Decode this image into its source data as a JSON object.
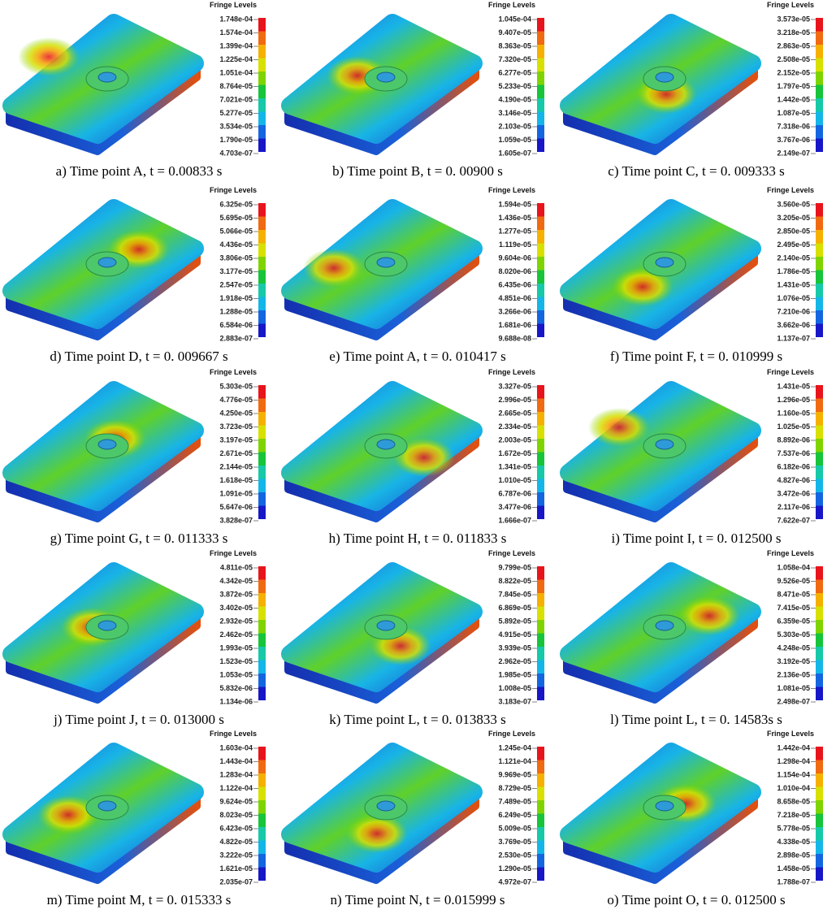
{
  "fringe_colors": [
    "#e8141c",
    "#f06a12",
    "#f5b000",
    "#d8e000",
    "#7fd400",
    "#17c43a",
    "#16c9a8",
    "#14b6e8",
    "#1466e0",
    "#1717c8"
  ],
  "panels": [
    {
      "title": "Fringe Levels",
      "levels": [
        "1.748e-04",
        "1.574e-04",
        "1.399e-04",
        "1.225e-04",
        "1.051e-04",
        "8.764e-05",
        "7.021e-05",
        "5.277e-05",
        "3.534e-05",
        "1.790e-05",
        "4.703e-07"
      ],
      "caption": "a) Time point A, t = 0.00833 s"
    },
    {
      "title": "Fringe Levels",
      "levels": [
        "1.045e-04",
        "9.407e-05",
        "8.363e-05",
        "7.320e-05",
        "6.277e-05",
        "5.233e-05",
        "4.190e-05",
        "3.146e-05",
        "2.103e-05",
        "1.059e-05",
        "1.605e-07"
      ],
      "caption": "b) Time point B, t = 0. 00900 s"
    },
    {
      "title": "Fringe Levels",
      "levels": [
        "3.573e-05",
        "3.218e-05",
        "2.863e-05",
        "2.508e-05",
        "2.152e-05",
        "1.797e-05",
        "1.442e-05",
        "1.087e-05",
        "7.318e-06",
        "3.767e-06",
        "2.149e-07"
      ],
      "caption": "c) Time point C, t = 0. 009333 s"
    },
    {
      "title": "Fringe Levels",
      "levels": [
        "6.325e-05",
        "5.695e-05",
        "5.066e-05",
        "4.436e-05",
        "3.806e-05",
        "3.177e-05",
        "2.547e-05",
        "1.918e-05",
        "1.288e-05",
        "6.584e-06",
        "2.883e-07"
      ],
      "caption": "d) Time point D, t = 0. 009667 s"
    },
    {
      "title": "Fringe Levels",
      "levels": [
        "1.594e-05",
        "1.436e-05",
        "1.277e-05",
        "1.119e-05",
        "9.604e-06",
        "8.020e-06",
        "6.435e-06",
        "4.851e-06",
        "3.266e-06",
        "1.681e-06",
        "9.688e-08"
      ],
      "caption": "e) Time point A, t = 0. 010417 s"
    },
    {
      "title": "Fringe Levels",
      "levels": [
        "3.560e-05",
        "3.205e-05",
        "2.850e-05",
        "2.495e-05",
        "2.140e-05",
        "1.786e-05",
        "1.431e-05",
        "1.076e-05",
        "7.210e-06",
        "3.662e-06",
        "1.137e-07"
      ],
      "caption": "f) Time point F, t = 0. 010999 s"
    },
    {
      "title": "Fringe Levels",
      "levels": [
        "5.303e-05",
        "4.776e-05",
        "4.250e-05",
        "3.723e-05",
        "3.197e-05",
        "2.671e-05",
        "2.144e-05",
        "1.618e-05",
        "1.091e-05",
        "5.647e-06",
        "3.828e-07"
      ],
      "caption": "g) Time point G, t = 0. 011333 s"
    },
    {
      "title": "Fringe Levels",
      "levels": [
        "3.327e-05",
        "2.996e-05",
        "2.665e-05",
        "2.334e-05",
        "2.003e-05",
        "1.672e-05",
        "1.341e-05",
        "1.010e-05",
        "6.787e-06",
        "3.477e-06",
        "1.666e-07"
      ],
      "caption": "h) Time point H, t = 0. 011833 s"
    },
    {
      "title": "Fringe Levels",
      "levels": [
        "1.431e-05",
        "1.296e-05",
        "1.160e-05",
        "1.025e-05",
        "8.892e-06",
        "7.537e-06",
        "6.182e-06",
        "4.827e-06",
        "3.472e-06",
        "2.117e-06",
        "7.622e-07"
      ],
      "caption": "i) Time point I, t = 0. 012500 s"
    },
    {
      "title": "Fringe Levels",
      "levels": [
        "4.811e-05",
        "4.342e-05",
        "3.872e-05",
        "3.402e-05",
        "2.932e-05",
        "2.462e-05",
        "1.993e-05",
        "1.523e-05",
        "1.053e-05",
        "5.832e-06",
        "1.134e-06"
      ],
      "caption": "j) Time point J, t = 0. 013000 s"
    },
    {
      "title": "Fringe Levels",
      "levels": [
        "9.799e-05",
        "8.822e-05",
        "7.845e-05",
        "6.869e-05",
        "5.892e-05",
        "4.915e-05",
        "3.939e-05",
        "2.962e-05",
        "1.985e-05",
        "1.008e-05",
        "3.183e-07"
      ],
      "caption": "k) Time point L, t = 0. 013833 s"
    },
    {
      "title": "Fringe Levels",
      "levels": [
        "1.058e-04",
        "9.526e-05",
        "8.471e-05",
        "7.415e-05",
        "6.359e-05",
        "5.303e-05",
        "4.248e-05",
        "3.192e-05",
        "2.136e-05",
        "1.081e-05",
        "2.498e-07"
      ],
      "caption": "l) Time point L, t = 0. 14583s s"
    },
    {
      "title": "Fringe Levels",
      "levels": [
        "1.603e-04",
        "1.443e-04",
        "1.283e-04",
        "1.122e-04",
        "9.624e-05",
        "8.023e-05",
        "6.423e-05",
        "4.822e-05",
        "3.222e-05",
        "1.621e-05",
        "2.035e-07"
      ],
      "caption": "m) Time point M, t = 0. 015333 s"
    },
    {
      "title": "Fringe Levels",
      "levels": [
        "1.245e-04",
        "1.121e-04",
        "9.969e-05",
        "8.729e-05",
        "7.489e-05",
        "6.249e-05",
        "5.009e-05",
        "3.769e-05",
        "2.530e-05",
        "1.290e-05",
        "4.972e-07"
      ],
      "caption": "n) Time point N, t = 0.015999 s"
    },
    {
      "title": "Fringe Levels",
      "levels": [
        "1.442e-04",
        "1.298e-04",
        "1.154e-04",
        "1.010e-04",
        "8.658e-05",
        "7.218e-05",
        "5.778e-05",
        "4.338e-05",
        "2.898e-05",
        "1.458e-05",
        "1.788e-07"
      ],
      "caption": "o) Time point O, t = 0. 012500 s"
    }
  ]
}
